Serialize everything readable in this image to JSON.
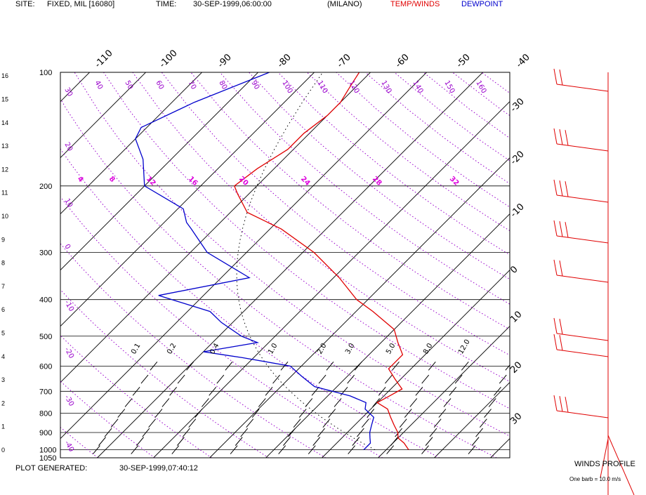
{
  "header": {
    "site_label": "SITE:",
    "site_value": "FIXED, MIL [16080]",
    "time_label": "TIME:",
    "time_value": "30-SEP-1999,06:00:00",
    "location": "(MILANO)",
    "temp_legend": "TEMP/WINDS",
    "dew_legend": "DEWPOINT"
  },
  "footer": {
    "generated_label": "PLOT GENERATED:",
    "generated_value": "30-SEP-1999,07:40:12",
    "winds_title": "WINDS PROFILE",
    "barb_note": "One barb = 10.0 m/s"
  },
  "colors": {
    "temperature": "#e00000",
    "dewpoint": "#0000cc",
    "adiabat": "#9900cc",
    "isotherm": "#000000",
    "isobar": "#000000",
    "mixing_ratio": "#000000",
    "theta_label": "#9900cc",
    "thetae_label": "#dd00dd"
  },
  "chart_data": {
    "type": "line",
    "title": "",
    "xlabel": "",
    "ylabel": "",
    "skew_t": true,
    "pressure_levels_hpa": [
      100,
      200,
      300,
      400,
      500,
      600,
      700,
      800,
      900,
      1000,
      1050
    ],
    "pressure_range_hpa": [
      100,
      1050
    ],
    "height_ticks_km": [
      0,
      1,
      2,
      3,
      4,
      5,
      6,
      7,
      8,
      9,
      10,
      11,
      12,
      13,
      14,
      15,
      16
    ],
    "isotherm_labels_c": [
      -110,
      -100,
      -90,
      -80,
      -70,
      -60,
      -50,
      -40,
      -30,
      -20,
      -10,
      0,
      10,
      20,
      30
    ],
    "theta_labels_k": [
      "30",
      "40",
      "50",
      "60",
      "70",
      "80",
      "90",
      "100",
      "110",
      "120",
      "130",
      "140",
      "150",
      "160"
    ],
    "theta_left_labels": [
      "30",
      "20",
      "10",
      "0",
      "-10",
      "-20",
      "-30",
      "-40"
    ],
    "thetae_labels": [
      "4",
      "8",
      "12",
      "16",
      "20",
      "24",
      "28",
      "32"
    ],
    "mixing_ratio_labels_gkg": [
      "0.1",
      "0.2",
      "0.4",
      "1.0",
      "2.0",
      "3.0",
      "5.0",
      "8.0",
      "12.0"
    ],
    "series": [
      {
        "name": "TEMP/WINDS",
        "points": [
          {
            "p": 1000,
            "t": 14
          },
          {
            "p": 960,
            "t": 12
          },
          {
            "p": 930,
            "t": 10
          },
          {
            "p": 900,
            "t": 9
          },
          {
            "p": 860,
            "t": 7
          },
          {
            "p": 820,
            "t": 5
          },
          {
            "p": 780,
            "t": 3
          },
          {
            "p": 750,
            "t": 0
          },
          {
            "p": 720,
            "t": 1
          },
          {
            "p": 690,
            "t": 2
          },
          {
            "p": 650,
            "t": -1
          },
          {
            "p": 610,
            "t": -4
          },
          {
            "p": 590,
            "t": -4
          },
          {
            "p": 560,
            "t": -4
          },
          {
            "p": 520,
            "t": -7
          },
          {
            "p": 480,
            "t": -10
          },
          {
            "p": 430,
            "t": -17
          },
          {
            "p": 400,
            "t": -22
          },
          {
            "p": 350,
            "t": -29
          },
          {
            "p": 300,
            "t": -38
          },
          {
            "p": 260,
            "t": -48
          },
          {
            "p": 235,
            "t": -57
          },
          {
            "p": 210,
            "t": -62
          },
          {
            "p": 200,
            "t": -64
          },
          {
            "p": 180,
            "t": -63
          },
          {
            "p": 160,
            "t": -61
          },
          {
            "p": 145,
            "t": -61
          },
          {
            "p": 130,
            "t": -60
          },
          {
            "p": 120,
            "t": -60
          },
          {
            "p": 110,
            "t": -61
          },
          {
            "p": 100,
            "t": -62
          }
        ]
      },
      {
        "name": "DEWPOINT",
        "points": [
          {
            "p": 1000,
            "t": 6
          },
          {
            "p": 960,
            "t": 6
          },
          {
            "p": 930,
            "t": 5
          },
          {
            "p": 900,
            "t": 4
          },
          {
            "p": 860,
            "t": 3
          },
          {
            "p": 820,
            "t": 2
          },
          {
            "p": 780,
            "t": -1
          },
          {
            "p": 750,
            "t": -2
          },
          {
            "p": 720,
            "t": -6
          },
          {
            "p": 680,
            "t": -14
          },
          {
            "p": 640,
            "t": -18
          },
          {
            "p": 600,
            "t": -22
          },
          {
            "p": 570,
            "t": -32
          },
          {
            "p": 560,
            "t": -36
          },
          {
            "p": 550,
            "t": -40
          },
          {
            "p": 520,
            "t": -32
          },
          {
            "p": 500,
            "t": -36
          },
          {
            "p": 460,
            "t": -42
          },
          {
            "p": 430,
            "t": -46
          },
          {
            "p": 390,
            "t": -58
          },
          {
            "p": 350,
            "t": -45
          },
          {
            "p": 300,
            "t": -57
          },
          {
            "p": 260,
            "t": -64
          },
          {
            "p": 250,
            "t": -66
          },
          {
            "p": 230,
            "t": -69
          },
          {
            "p": 200,
            "t": -80
          },
          {
            "p": 170,
            "t": -85
          },
          {
            "p": 150,
            "t": -90
          },
          {
            "p": 140,
            "t": -91
          },
          {
            "p": 120,
            "t": -86
          },
          {
            "p": 100,
            "t": -78
          }
        ]
      }
    ],
    "wind_barbs": [
      {
        "level": 1,
        "barbs": 2
      },
      {
        "level": 2,
        "barbs": 3
      },
      {
        "level": 3,
        "barbs": 3
      },
      {
        "level": 4,
        "barbs": 3
      },
      {
        "level": 5,
        "barbs": 2
      },
      {
        "level": 6,
        "barbs": 2
      },
      {
        "level": 7,
        "barbs": 2
      },
      {
        "level": 8,
        "barbs": 3
      },
      {
        "level": 9,
        "barbs": 1
      }
    ]
  }
}
